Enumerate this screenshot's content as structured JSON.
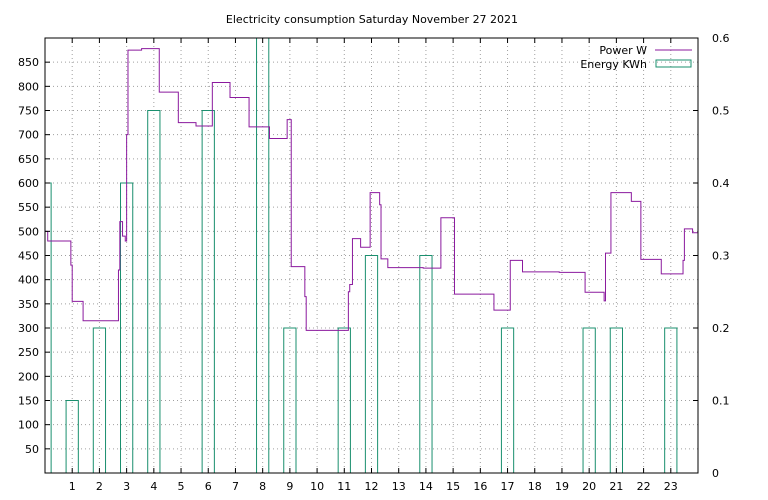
{
  "chart_data": {
    "type": "line",
    "title": "Electricity consumption Saturday November 27 2021",
    "xlabel": "",
    "ylabel": "",
    "y2label": "",
    "xlim": [
      0,
      24
    ],
    "ylim": [
      0,
      900
    ],
    "y2lim": [
      0,
      0.6
    ],
    "xticks": [
      1,
      2,
      3,
      4,
      5,
      6,
      7,
      8,
      9,
      10,
      11,
      12,
      13,
      14,
      15,
      16,
      17,
      18,
      19,
      20,
      21,
      22,
      23
    ],
    "yticks": [
      50,
      100,
      150,
      200,
      250,
      300,
      350,
      400,
      450,
      500,
      550,
      600,
      650,
      700,
      750,
      800,
      850
    ],
    "y2ticks": [
      0,
      0.1,
      0.2,
      0.3,
      0.4,
      0.5,
      0.6
    ],
    "grid": true,
    "legend_position": "top-right",
    "series": [
      {
        "name": "Power W",
        "color": "#8b1a9e",
        "style": "steps",
        "axis": "left",
        "points": [
          [
            0.0,
            500
          ],
          [
            0.1,
            480
          ],
          [
            0.95,
            430
          ],
          [
            1.0,
            355
          ],
          [
            1.4,
            315
          ],
          [
            2.7,
            420
          ],
          [
            2.75,
            520
          ],
          [
            2.85,
            490
          ],
          [
            2.95,
            480
          ],
          [
            3.0,
            700
          ],
          [
            3.05,
            875
          ],
          [
            3.55,
            878
          ],
          [
            4.2,
            788
          ],
          [
            4.9,
            725
          ],
          [
            5.55,
            718
          ],
          [
            6.15,
            808
          ],
          [
            6.8,
            777
          ],
          [
            7.5,
            716
          ],
          [
            8.25,
            692
          ],
          [
            8.9,
            731
          ],
          [
            9.05,
            427
          ],
          [
            9.55,
            365
          ],
          [
            9.6,
            295
          ],
          [
            11.15,
            375
          ],
          [
            11.2,
            390
          ],
          [
            11.3,
            485
          ],
          [
            11.6,
            467
          ],
          [
            11.95,
            580
          ],
          [
            12.3,
            555
          ],
          [
            12.35,
            443
          ],
          [
            12.6,
            425
          ],
          [
            13.9,
            424
          ],
          [
            14.55,
            528
          ],
          [
            15.05,
            370
          ],
          [
            16.5,
            337
          ],
          [
            17.1,
            440
          ],
          [
            17.55,
            416
          ],
          [
            18.9,
            415
          ],
          [
            19.85,
            374
          ],
          [
            20.55,
            356
          ],
          [
            20.6,
            455
          ],
          [
            20.8,
            580
          ],
          [
            21.55,
            562
          ],
          [
            21.9,
            442
          ],
          [
            22.65,
            412
          ],
          [
            23.45,
            440
          ],
          [
            23.5,
            505
          ],
          [
            23.8,
            497
          ],
          [
            24.0,
            497
          ]
        ]
      },
      {
        "name": "Energy KWh",
        "color": "#1a8f6e",
        "style": "bars",
        "axis": "right",
        "bar_width": 0.45,
        "points": [
          [
            0,
            0.4
          ],
          [
            1,
            0.1
          ],
          [
            2,
            0.2
          ],
          [
            3,
            0.4
          ],
          [
            4,
            0.5
          ],
          [
            5,
            0
          ],
          [
            6,
            0.5
          ],
          [
            7,
            0
          ],
          [
            8,
            0.6
          ],
          [
            9,
            0.2
          ],
          [
            10,
            0
          ],
          [
            11,
            0.2
          ],
          [
            12,
            0.3
          ],
          [
            13,
            0
          ],
          [
            14,
            0.3
          ],
          [
            15,
            0
          ],
          [
            16,
            0
          ],
          [
            17,
            0.2
          ],
          [
            18,
            0
          ],
          [
            19,
            0
          ],
          [
            20,
            0.2
          ],
          [
            21,
            0.2
          ],
          [
            22,
            0
          ],
          [
            23,
            0.2
          ]
        ]
      }
    ]
  }
}
